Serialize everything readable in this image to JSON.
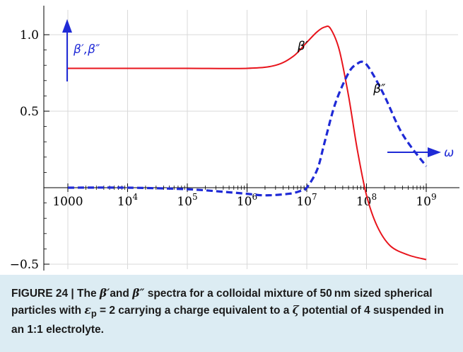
{
  "chart_data": {
    "type": "line",
    "title": "",
    "xlabel": "",
    "ylabel": "",
    "x_scale": "log",
    "xlim": [
      1000,
      1000000000
    ],
    "ylim": [
      -0.55,
      1.1
    ],
    "x_ticks": [
      1000,
      10000,
      100000,
      1000000,
      10000000,
      100000000,
      1000000000
    ],
    "x_tick_labels": [
      {
        "base": "1000",
        "exp": ""
      },
      {
        "base": "10",
        "exp": "4"
      },
      {
        "base": "10",
        "exp": "5"
      },
      {
        "base": "10",
        "exp": "6"
      },
      {
        "base": "10",
        "exp": "7"
      },
      {
        "base": "10",
        "exp": "8"
      },
      {
        "base": "10",
        "exp": "9"
      }
    ],
    "y_ticks": [
      1.0,
      0.5,
      -0.5
    ],
    "y_tick_labels": [
      "1.0",
      "0.5",
      "−0.5"
    ],
    "grid": true,
    "series": [
      {
        "name": "β′",
        "color": "#e8141c",
        "dash": "solid",
        "x": [
          1000,
          10000,
          100000,
          1000000,
          3000000,
          6000000,
          10000000,
          15000000,
          20000000,
          25000000,
          35000000,
          50000000,
          70000000,
          100000000,
          150000000,
          250000000,
          500000000,
          1000000000
        ],
        "y": [
          0.78,
          0.78,
          0.78,
          0.78,
          0.8,
          0.86,
          0.95,
          1.02,
          1.05,
          1.04,
          0.9,
          0.6,
          0.25,
          -0.05,
          -0.25,
          -0.38,
          -0.44,
          -0.47
        ]
      },
      {
        "name": "β″",
        "color": "#1f2ad6",
        "dash": "dashed",
        "x": [
          1000,
          10000,
          100000,
          500000,
          1000000,
          2000000,
          5000000,
          8000000,
          10000000,
          15000000,
          20000000,
          30000000,
          50000000,
          70000000,
          90000000,
          120000000,
          200000000,
          400000000,
          1000000000
        ],
        "y": [
          0.0,
          0.0,
          -0.01,
          -0.03,
          -0.04,
          -0.05,
          -0.04,
          -0.02,
          0.0,
          0.12,
          0.3,
          0.55,
          0.75,
          0.81,
          0.82,
          0.76,
          0.6,
          0.35,
          0.14
        ]
      }
    ],
    "annotations": [
      {
        "text": "β′,β″",
        "role": "y-arrow-label",
        "color": "#1f2ad6"
      },
      {
        "text": "β′",
        "role": "series-label",
        "color": "#000000",
        "x": 7000000,
        "y": 0.9
      },
      {
        "text": "β″",
        "role": "series-label",
        "color": "#000000",
        "x": 130000000,
        "y": 0.62
      },
      {
        "text": "ω",
        "role": "x-arrow-label",
        "color": "#1f2ad6"
      }
    ]
  },
  "caption": {
    "lead": "FIGURE 24 | The ",
    "b1": "β′",
    "mid1": "and ",
    "b2": "β″",
    "mid2": " spectra for a colloidal mixture of 50 nm sized spherical particles with ",
    "eps": "ε",
    "eps_sub": "p",
    "mid3": " = 2 carrying a charge equivalent to a ",
    "zeta": "ζ",
    "tail": " potential of 4 suspended in an 1:1 electrolyte."
  }
}
